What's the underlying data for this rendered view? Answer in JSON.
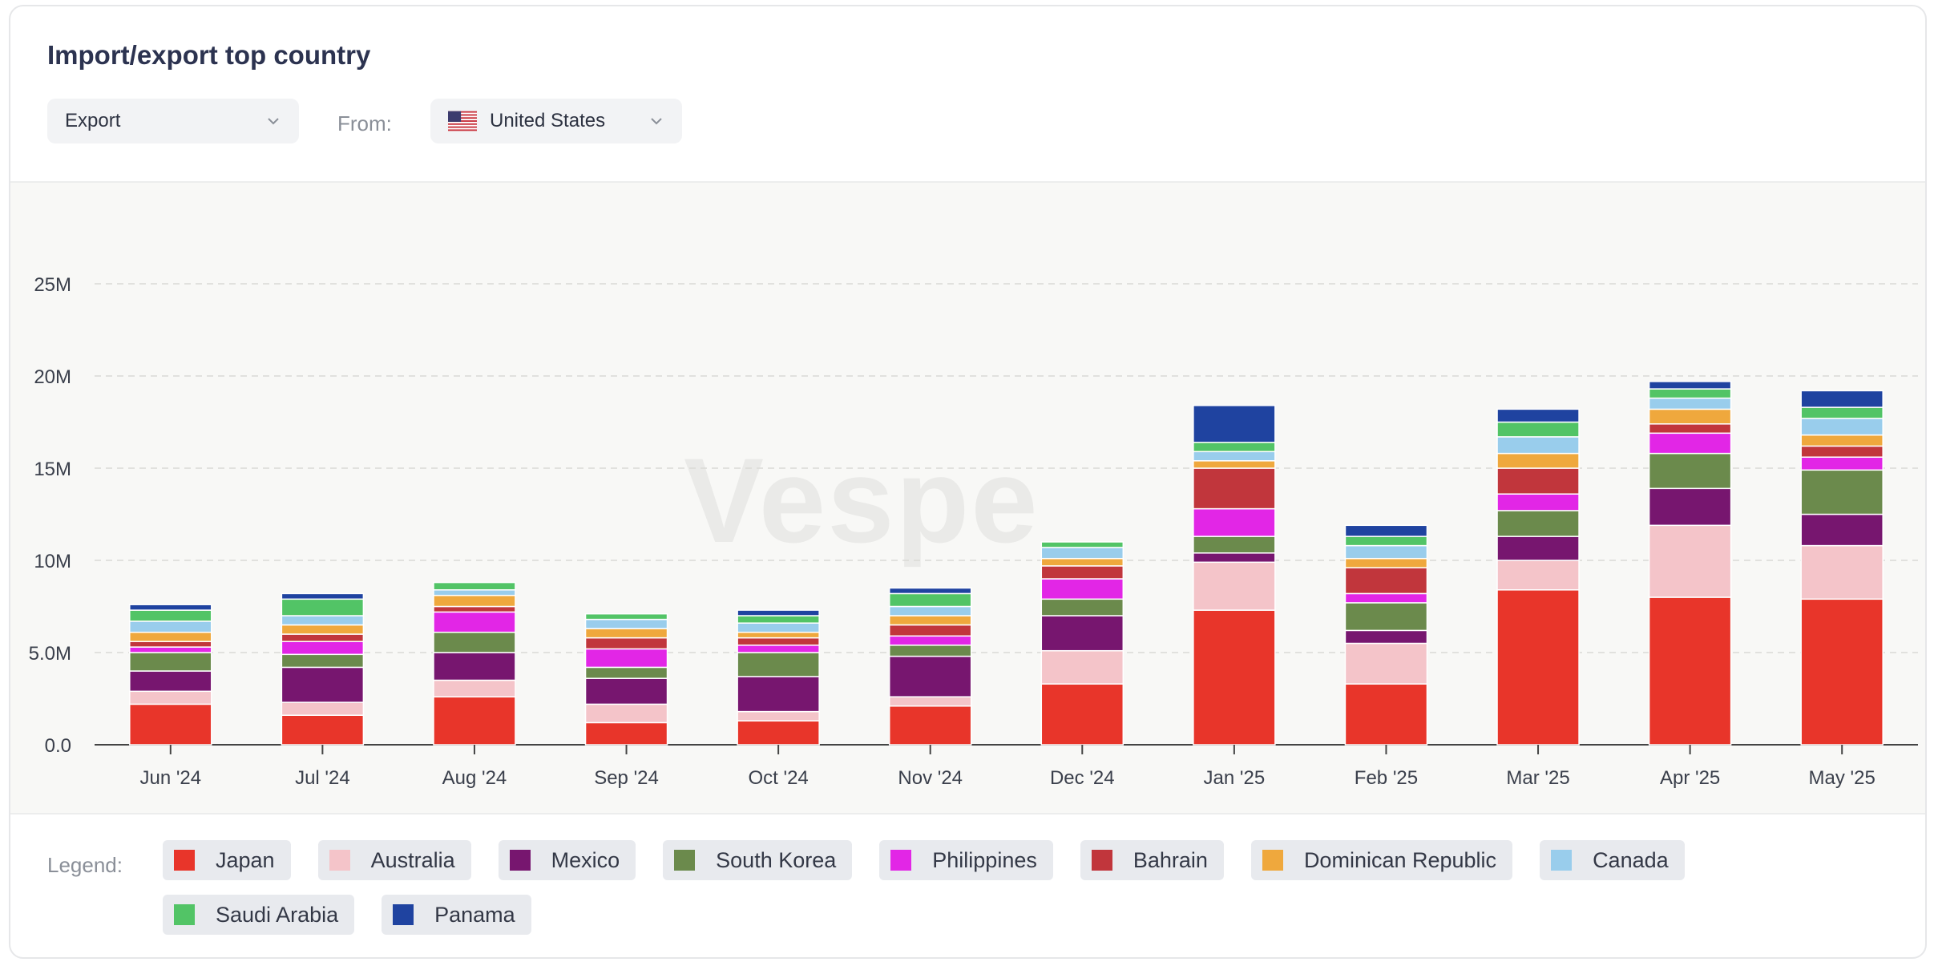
{
  "title": "Import/export top country",
  "controls": {
    "type_select": {
      "value": "Export"
    },
    "from_label": "From:",
    "country_select": {
      "value": "United States"
    }
  },
  "watermark": "Vespe",
  "legend": {
    "label": "Legend:",
    "items": [
      {
        "name": "Japan",
        "color": "#e8352a"
      },
      {
        "name": "Australia",
        "color": "#f4c4c9"
      },
      {
        "name": "Mexico",
        "color": "#77166f"
      },
      {
        "name": "South Korea",
        "color": "#6b8a4c"
      },
      {
        "name": "Philippines",
        "color": "#e226e6"
      },
      {
        "name": "Bahrain",
        "color": "#c1363c"
      },
      {
        "name": "Dominican Republic",
        "color": "#efa83d"
      },
      {
        "name": "Canada",
        "color": "#99cdec"
      },
      {
        "name": "Saudi Arabia",
        "color": "#52c466"
      },
      {
        "name": "Panama",
        "color": "#1f43a0"
      }
    ]
  },
  "chart_data": {
    "type": "bar",
    "stacked": true,
    "categories": [
      "Jun '24",
      "Jul '24",
      "Aug '24",
      "Sep '24",
      "Oct '24",
      "Nov '24",
      "Dec '24",
      "Jan '25",
      "Feb '25",
      "Mar '25",
      "Apr '25",
      "May '25"
    ],
    "y_ticks": [
      "0.0",
      "5.0M",
      "10M",
      "15M",
      "20M",
      "25M"
    ],
    "ylim": [
      0,
      25000000
    ],
    "grid": true,
    "legend_position": "bottom",
    "series": [
      {
        "name": "Japan",
        "color": "#e8352a",
        "values": [
          2200000,
          1600000,
          2600000,
          1200000,
          1300000,
          2100000,
          3300000,
          7300000,
          3300000,
          8400000,
          8000000,
          7900000
        ]
      },
      {
        "name": "Australia",
        "color": "#f4c4c9",
        "values": [
          700000,
          700000,
          900000,
          1000000,
          500000,
          500000,
          1800000,
          2600000,
          2200000,
          1600000,
          3900000,
          2900000
        ]
      },
      {
        "name": "Mexico",
        "color": "#77166f",
        "values": [
          1100000,
          1900000,
          1500000,
          1400000,
          1900000,
          2200000,
          1900000,
          500000,
          700000,
          1300000,
          2000000,
          1700000
        ]
      },
      {
        "name": "South Korea",
        "color": "#6b8a4c",
        "values": [
          1000000,
          700000,
          1100000,
          600000,
          1300000,
          600000,
          900000,
          900000,
          1500000,
          1400000,
          1900000,
          2400000
        ]
      },
      {
        "name": "Philippines",
        "color": "#e226e6",
        "values": [
          300000,
          700000,
          1100000,
          1000000,
          400000,
          500000,
          1100000,
          1500000,
          500000,
          900000,
          1100000,
          700000
        ]
      },
      {
        "name": "Bahrain",
        "color": "#c1363c",
        "values": [
          300000,
          400000,
          300000,
          600000,
          400000,
          600000,
          700000,
          2200000,
          1400000,
          1400000,
          500000,
          600000
        ]
      },
      {
        "name": "Dominican Republic",
        "color": "#efa83d",
        "values": [
          500000,
          500000,
          600000,
          500000,
          300000,
          500000,
          400000,
          400000,
          500000,
          800000,
          800000,
          600000
        ]
      },
      {
        "name": "Canada",
        "color": "#99cdec",
        "values": [
          600000,
          500000,
          300000,
          500000,
          500000,
          500000,
          600000,
          500000,
          700000,
          900000,
          600000,
          900000
        ]
      },
      {
        "name": "Saudi Arabia",
        "color": "#52c466",
        "values": [
          600000,
          900000,
          400000,
          300000,
          400000,
          700000,
          300000,
          500000,
          500000,
          800000,
          500000,
          600000
        ]
      },
      {
        "name": "Panama",
        "color": "#1f43a0",
        "values": [
          300000,
          300000,
          0,
          0,
          300000,
          300000,
          0,
          2000000,
          600000,
          700000,
          400000,
          900000
        ]
      }
    ]
  }
}
